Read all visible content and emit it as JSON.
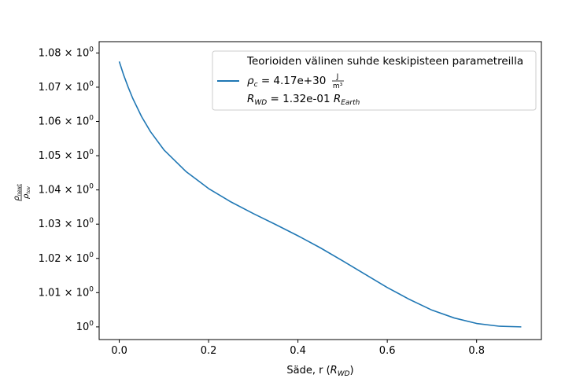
{
  "chart_data": {
    "type": "line",
    "title": "",
    "xlabel": "Säde, r (R_WD)",
    "xlabel_parts": {
      "prefix": "Säde, r (",
      "sym": "R",
      "sub": "WD",
      "suffix": ")"
    },
    "ylabel": "ρ_newt / ρ_tov",
    "ylabel_parts": {
      "num_sym": "ρ",
      "num_sub": "newt",
      "den_sym": "ρ",
      "den_sub": "tov"
    },
    "xlim": [
      -0.045,
      0.945
    ],
    "ylim": [
      0.9963,
      1.0833
    ],
    "x_ticks": [
      0.0,
      0.2,
      0.4,
      0.6,
      0.8
    ],
    "x_tick_labels": [
      "0.0",
      "0.2",
      "0.4",
      "0.6",
      "0.8"
    ],
    "y_ticks": [
      1.0,
      1.01,
      1.02,
      1.03,
      1.04,
      1.05,
      1.06,
      1.07,
      1.08
    ],
    "y_tick_labels": [
      {
        "mant": "",
        "text": "10"
      },
      {
        "mant": "1.01 × ",
        "text": "10"
      },
      {
        "mant": "1.02 × ",
        "text": "10"
      },
      {
        "mant": "1.03 × ",
        "text": "10"
      },
      {
        "mant": "1.04 × ",
        "text": "10"
      },
      {
        "mant": "1.05 × ",
        "text": "10"
      },
      {
        "mant": "1.06 × ",
        "text": "10"
      },
      {
        "mant": "1.07 × ",
        "text": "10"
      },
      {
        "mant": "1.08 × ",
        "text": "10"
      }
    ],
    "y_tick_exp": "0",
    "legend_position": "upper right",
    "legend": {
      "title": "Teorioiden välinen suhde keskipisteen parametreilla",
      "line1": {
        "sym": "ρ",
        "sub": "c",
        "text": " = 4.17e+30 ",
        "frac_num": "J",
        "frac_den": "m³"
      },
      "line2": {
        "sym": "R",
        "sub": "WD",
        "text": " = 1.32e-01 ",
        "sym2": "R",
        "sub2": "Earth"
      }
    },
    "grid": false,
    "series": [
      {
        "color": "#1f77b4",
        "x": [
          0.0,
          0.01,
          0.02,
          0.03,
          0.05,
          0.07,
          0.1,
          0.15,
          0.2,
          0.25,
          0.3,
          0.35,
          0.4,
          0.45,
          0.5,
          0.55,
          0.6,
          0.65,
          0.7,
          0.75,
          0.8,
          0.85,
          0.9
        ],
        "values": [
          1.0775,
          1.0735,
          1.07,
          1.0668,
          1.0614,
          1.057,
          1.0517,
          1.0453,
          1.0404,
          1.0365,
          1.0331,
          1.0299,
          1.0266,
          1.0231,
          1.0193,
          1.0154,
          1.0115,
          1.008,
          1.0049,
          1.0026,
          1.001,
          1.0002,
          1.0
        ]
      }
    ]
  }
}
